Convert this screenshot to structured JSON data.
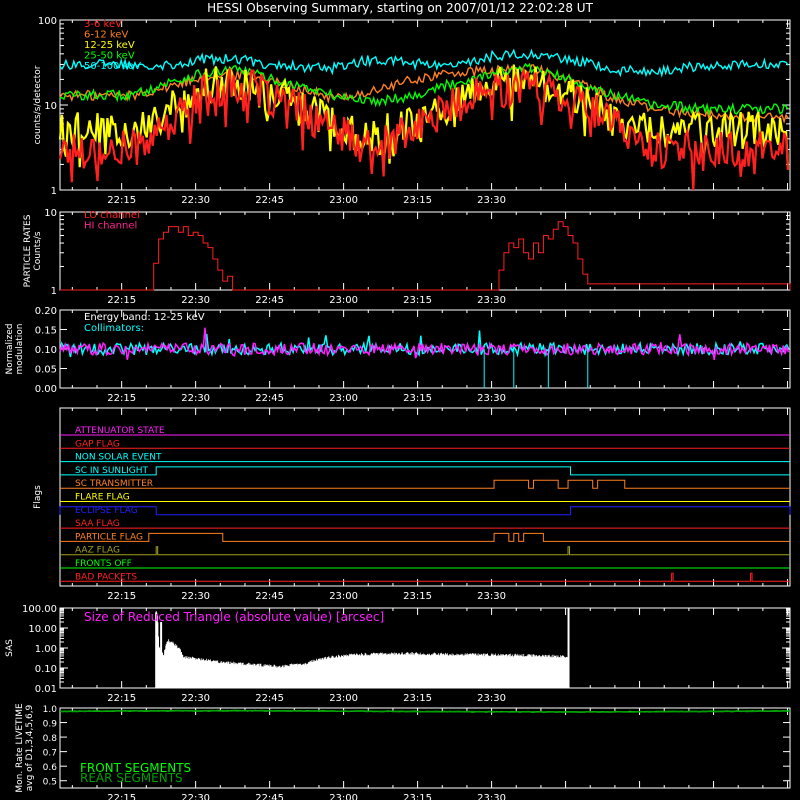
{
  "title": "HESSI Observing Summary, starting on 2007/01/12 22:02:28 UT",
  "x_ticks": [
    "22:15",
    "22:30",
    "22:45",
    "23:00",
    "23:15",
    "23:30"
  ],
  "chart_data": [
    {
      "name": "count_rates",
      "type": "line",
      "ylabel": "counts/s/detector",
      "yscale": "log",
      "ylim": [
        1,
        100
      ],
      "y_ticks": [
        "1",
        "10",
        "100"
      ],
      "x_minutes": [
        0,
        15,
        23,
        30,
        37,
        43,
        55,
        63,
        72,
        80,
        88,
        95,
        103,
        112,
        120,
        130,
        138,
        148
      ],
      "series": [
        {
          "name": "3-6 keV",
          "color": "#ff2020",
          "values": [
            3,
            3,
            6,
            15,
            17,
            12,
            5,
            3,
            5,
            10,
            15,
            17,
            13,
            6,
            3,
            3,
            3,
            3
          ]
        },
        {
          "name": "6-12 keV",
          "color": "#ff8020",
          "values": [
            13,
            13,
            17,
            22,
            23,
            19,
            12,
            14,
            20,
            24,
            25,
            27,
            20,
            12,
            9,
            8,
            7,
            7
          ]
        },
        {
          "name": "12-25 keV",
          "color": "#ffff00",
          "values": [
            5,
            5,
            9,
            17,
            19,
            13,
            6,
            4,
            6,
            11,
            17,
            20,
            14,
            7,
            5,
            5,
            5,
            5
          ]
        },
        {
          "name": "25-50 keV",
          "color": "#00ff00",
          "values": [
            13,
            13,
            19,
            24,
            26,
            20,
            13,
            11,
            13,
            18,
            24,
            27,
            20,
            13,
            10,
            9,
            9,
            9
          ]
        },
        {
          "name": "50-100 keV",
          "color": "#00ffff",
          "values": [
            30,
            30,
            30,
            35,
            34,
            30,
            27,
            34,
            31,
            28,
            38,
            40,
            34,
            26,
            24,
            29,
            30,
            30
          ]
        }
      ]
    },
    {
      "name": "particle_rates",
      "type": "line",
      "ylabel": "PARTICLE RATES Counts/s",
      "yscale": "log",
      "ylim": [
        1,
        10
      ],
      "y_ticks": [
        "1",
        "10"
      ],
      "series": [
        {
          "name": "LO channel",
          "color": "#ff2020"
        },
        {
          "name": "HI channel",
          "color": "#ff2090"
        }
      ],
      "x_minutes": [
        0,
        18,
        19,
        20,
        21,
        22,
        23,
        24,
        25,
        26,
        27,
        28,
        29,
        30,
        31,
        32,
        33,
        34,
        35,
        36,
        37,
        38,
        39,
        40,
        41,
        42,
        43,
        44,
        45,
        88,
        89,
        90,
        91,
        92,
        93,
        94,
        95,
        96,
        97,
        98,
        99,
        100,
        101,
        102,
        103,
        104,
        105,
        106,
        107,
        148
      ],
      "values": [
        1,
        1,
        2.2,
        4.5,
        5.5,
        6.5,
        6.5,
        5.5,
        6.5,
        5,
        5.5,
        5,
        4,
        3.5,
        2.5,
        1.8,
        1.3,
        1.5,
        1,
        1,
        1,
        1,
        1,
        1,
        1,
        1,
        1,
        1,
        1,
        1,
        1.8,
        3,
        4,
        3.5,
        4.5,
        3,
        2.5,
        4,
        3,
        5,
        4.5,
        6,
        7.5,
        6.5,
        5,
        4,
        2.5,
        1.6,
        1.2,
        1
      ]
    },
    {
      "name": "modulation",
      "type": "line",
      "ylabel": "Normalized modulation",
      "ylim": [
        0,
        0.2
      ],
      "y_ticks": [
        "0.00",
        "0.05",
        "0.10",
        "0.15",
        "0.20"
      ],
      "annotations": [
        "Energy band: 12-25 keV",
        "Collimators:"
      ],
      "series": [
        {
          "name": "Collimators",
          "color": "#00ffff",
          "level": 0.1
        },
        {
          "name": "",
          "color": "#ff20ff",
          "level": 0.1
        }
      ]
    },
    {
      "name": "flags",
      "type": "line",
      "ylabel": "Flags",
      "series": [
        {
          "name": "ATTENUATOR STATE",
          "color": "#ff20ff",
          "segments": [
            [
              0,
              0
            ]
          ]
        },
        {
          "name": "GAP FLAG",
          "color": "#ff2020",
          "segments": []
        },
        {
          "name": "NON SOLAR EVENT",
          "color": "#00ffff",
          "segments": []
        },
        {
          "name": "SC IN SUNLIGHT",
          "color": "#00ffff",
          "segments": [
            [
              19.5,
              103.5
            ]
          ]
        },
        {
          "name": "SC TRANSMITTER",
          "color": "#ff8020",
          "segments": [
            [
              88,
              95
            ],
            [
              96,
              101
            ],
            [
              103,
              108
            ],
            [
              109,
              114.5
            ]
          ]
        },
        {
          "name": "FLARE FLAG",
          "color": "#ffff00",
          "segments": []
        },
        {
          "name": "ECLIPSE FLAG",
          "color": "#2020ff",
          "segments": [
            [
              0,
              19.5
            ],
            [
              103.5,
              148
            ]
          ]
        },
        {
          "name": "SAA FLAG",
          "color": "#ff2020",
          "segments": []
        },
        {
          "name": "PARTICLE FLAG",
          "color": "#ff8020",
          "segments": [
            [
              18,
              33
            ],
            [
              88,
              91
            ],
            [
              92,
              93
            ],
            [
              94,
              98
            ]
          ]
        },
        {
          "name": "AAZ FLAG",
          "color": "#a0a020",
          "segments": [
            [
              19.5,
              19.8
            ],
            [
              103,
              103.3
            ]
          ]
        },
        {
          "name": "FRONTS OFF",
          "color": "#00ff00",
          "segments": []
        },
        {
          "name": "BAD PACKETS",
          "color": "#ff2020",
          "segments": [
            [
              124,
              124.3
            ],
            [
              140,
              140.3
            ]
          ]
        }
      ]
    },
    {
      "name": "sas",
      "type": "line",
      "ylabel": "SAS",
      "yscale": "log",
      "ylim": [
        0.01,
        100
      ],
      "y_ticks": [
        "0.01",
        "0.10",
        "1.00",
        "10.00",
        "100.00"
      ],
      "annotations": [
        "Size of Reduced Triangle (absolute value) [arcsec]"
      ],
      "series": [
        {
          "name": "",
          "color": "#ffffff"
        }
      ],
      "x_minutes": [
        19.5,
        20,
        21,
        22,
        25,
        30,
        35,
        40,
        45,
        50,
        55,
        60,
        70,
        80,
        90,
        100,
        103,
        103.2
      ],
      "values": [
        60,
        1,
        0.3,
        2,
        0.3,
        0.2,
        0.15,
        0.12,
        0.1,
        0.15,
        0.3,
        0.4,
        0.45,
        0.4,
        0.38,
        0.33,
        0.3,
        100
      ]
    },
    {
      "name": "livetime",
      "type": "line",
      "ylabel": "Mon. Rate LIVETIME avg of D1,3,4,5,6,9",
      "ylim": [
        0.45,
        1.0
      ],
      "y_ticks": [
        "0.5",
        "0.6",
        "0.7",
        "0.8",
        "0.9",
        "1.0"
      ],
      "series": [
        {
          "name": "FRONT SEGMENTS",
          "color": "#00ff00",
          "level": 0.98
        },
        {
          "name": "REAR SEGMENTS",
          "color": "#00a000",
          "level": 0.98
        }
      ]
    }
  ]
}
